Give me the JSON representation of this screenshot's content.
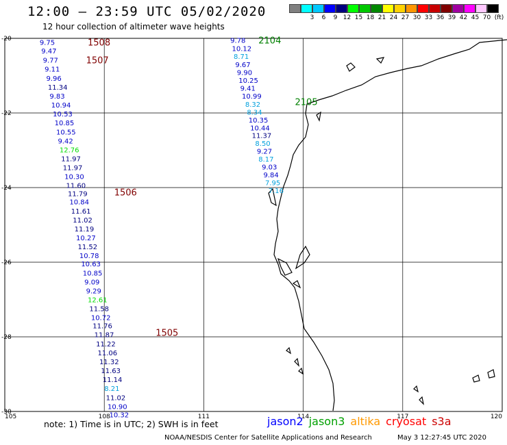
{
  "header": {
    "title": "12:00 — 23:59 UTC 05/02/2020",
    "subtitle": "12 hour collection of altimeter wave heights"
  },
  "legend": {
    "unit": "(ft)",
    "swatches": [
      {
        "label": "",
        "color": "#808080"
      },
      {
        "label": "3",
        "color": "#00ffff"
      },
      {
        "label": "6",
        "color": "#00c8ff"
      },
      {
        "label": "9",
        "color": "#0000ff"
      },
      {
        "label": "12",
        "color": "#00007f"
      },
      {
        "label": "15",
        "color": "#00ff00"
      },
      {
        "label": "18",
        "color": "#00c800"
      },
      {
        "label": "21",
        "color": "#008800"
      },
      {
        "label": "24",
        "color": "#ffff00"
      },
      {
        "label": "27",
        "color": "#ffd200"
      },
      {
        "label": "30",
        "color": "#ff9600"
      },
      {
        "label": "33",
        "color": "#ff0000"
      },
      {
        "label": "36",
        "color": "#c80000"
      },
      {
        "label": "39",
        "color": "#800000"
      },
      {
        "label": "42",
        "color": "#a000a0"
      },
      {
        "label": "45",
        "color": "#ff00ff"
      },
      {
        "label": "70",
        "color": "#ffc8ff"
      },
      {
        "label": "",
        "color": "#000000"
      }
    ]
  },
  "map": {
    "lon_range": [
      105,
      120
    ],
    "lat_range": [
      -30,
      -20
    ],
    "lon_ticks": [
      "105",
      "108",
      "111",
      "114",
      "117",
      "120"
    ],
    "lat_ticks": [
      "-20",
      "-22",
      "-24",
      "-26",
      "-28",
      "-30"
    ],
    "tracks": [
      {
        "time": "1508",
        "color": "#800000",
        "lon": 107.5,
        "lat": -20.1
      },
      {
        "time": "1507",
        "color": "#800000",
        "lon": 107.45,
        "lat": -20.58
      },
      {
        "time": "1506",
        "color": "#800000",
        "lon": 108.3,
        "lat": -24.12
      },
      {
        "time": "1505",
        "color": "#800000",
        "lon": 109.55,
        "lat": -27.88
      },
      {
        "time": "2104",
        "color": "#008000",
        "lon": 112.65,
        "lat": -20.05
      },
      {
        "time": "2105",
        "color": "#008000",
        "lon": 113.75,
        "lat": -21.7
      }
    ],
    "wave_heights": [
      {
        "v": "9.75",
        "lon": 106.05,
        "lat": -20.1,
        "c": "#0000c8"
      },
      {
        "v": "9.47",
        "lon": 106.1,
        "lat": -20.33,
        "c": "#0000c8"
      },
      {
        "v": "9.77",
        "lon": 106.15,
        "lat": -20.58,
        "c": "#0000c8"
      },
      {
        "v": "9.11",
        "lon": 106.2,
        "lat": -20.82,
        "c": "#0000c8"
      },
      {
        "v": "9.96",
        "lon": 106.25,
        "lat": -21.06,
        "c": "#0000c8"
      },
      {
        "v": "11.34",
        "lon": 106.3,
        "lat": -21.3,
        "c": "#000080"
      },
      {
        "v": "9.83",
        "lon": 106.35,
        "lat": -21.54,
        "c": "#0000c8"
      },
      {
        "v": "10.94",
        "lon": 106.4,
        "lat": -21.78,
        "c": "#0000c8"
      },
      {
        "v": "10.53",
        "lon": 106.45,
        "lat": -22.02,
        "c": "#0000c8"
      },
      {
        "v": "10.85",
        "lon": 106.5,
        "lat": -22.26,
        "c": "#0000c8"
      },
      {
        "v": "10.55",
        "lon": 106.55,
        "lat": -22.5,
        "c": "#0000c8"
      },
      {
        "v": "9.42",
        "lon": 106.6,
        "lat": -22.74,
        "c": "#0000c8"
      },
      {
        "v": "12.76",
        "lon": 106.65,
        "lat": -22.98,
        "c": "#00dd00"
      },
      {
        "v": "11.97",
        "lon": 106.7,
        "lat": -23.22,
        "c": "#000080"
      },
      {
        "v": "11.97",
        "lon": 106.75,
        "lat": -23.46,
        "c": "#000080"
      },
      {
        "v": "10.30",
        "lon": 106.8,
        "lat": -23.7,
        "c": "#0000c8"
      },
      {
        "v": "11.60",
        "lon": 106.85,
        "lat": -23.94,
        "c": "#000080"
      },
      {
        "v": "11.79",
        "lon": 106.9,
        "lat": -24.16,
        "c": "#000080"
      },
      {
        "v": "10.84",
        "lon": 106.95,
        "lat": -24.38,
        "c": "#0000c8"
      },
      {
        "v": "11.61",
        "lon": 107.0,
        "lat": -24.62,
        "c": "#000080"
      },
      {
        "v": "11.02",
        "lon": 107.05,
        "lat": -24.86,
        "c": "#000080"
      },
      {
        "v": "11.19",
        "lon": 107.1,
        "lat": -25.1,
        "c": "#000080"
      },
      {
        "v": "10.27",
        "lon": 107.15,
        "lat": -25.34,
        "c": "#0000c8"
      },
      {
        "v": "11.52",
        "lon": 107.2,
        "lat": -25.58,
        "c": "#000080"
      },
      {
        "v": "10.78",
        "lon": 107.25,
        "lat": -25.82,
        "c": "#0000c8"
      },
      {
        "v": "10.63",
        "lon": 107.3,
        "lat": -26.04,
        "c": "#0000c8"
      },
      {
        "v": "10.85",
        "lon": 107.35,
        "lat": -26.28,
        "c": "#0000c8"
      },
      {
        "v": "9.09",
        "lon": 107.4,
        "lat": -26.52,
        "c": "#0000c8"
      },
      {
        "v": "9.29",
        "lon": 107.45,
        "lat": -26.76,
        "c": "#0000c8"
      },
      {
        "v": "12.61",
        "lon": 107.5,
        "lat": -27.0,
        "c": "#00dd00"
      },
      {
        "v": "11.58",
        "lon": 107.55,
        "lat": -27.24,
        "c": "#000080"
      },
      {
        "v": "10.72",
        "lon": 107.6,
        "lat": -27.48,
        "c": "#0000c8"
      },
      {
        "v": "11.76",
        "lon": 107.65,
        "lat": -27.7,
        "c": "#000080"
      },
      {
        "v": "11.87",
        "lon": 107.7,
        "lat": -27.94,
        "c": "#000080"
      },
      {
        "v": "11.22",
        "lon": 107.75,
        "lat": -28.18,
        "c": "#000080"
      },
      {
        "v": "11.06",
        "lon": 107.8,
        "lat": -28.42,
        "c": "#000080"
      },
      {
        "v": "11.32",
        "lon": 107.85,
        "lat": -28.66,
        "c": "#000080"
      },
      {
        "v": "11.63",
        "lon": 107.9,
        "lat": -28.9,
        "c": "#000080"
      },
      {
        "v": "11.14",
        "lon": 107.95,
        "lat": -29.14,
        "c": "#000080"
      },
      {
        "v": "8.21",
        "lon": 108.0,
        "lat": -29.38,
        "c": "#00a0dd"
      },
      {
        "v": "11.02",
        "lon": 108.05,
        "lat": -29.62,
        "c": "#000080"
      },
      {
        "v": "10.90",
        "lon": 108.1,
        "lat": -29.86,
        "c": "#0000c8"
      },
      {
        "v": "10.32",
        "lon": 108.15,
        "lat": -30.08,
        "c": "#0000c8"
      },
      {
        "v": "9.78",
        "lon": 111.8,
        "lat": -20.05,
        "c": "#0000c8"
      },
      {
        "v": "10.12",
        "lon": 111.85,
        "lat": -20.27,
        "c": "#0000c8"
      },
      {
        "v": "8.71",
        "lon": 111.9,
        "lat": -20.48,
        "c": "#00a0dd"
      },
      {
        "v": "9.67",
        "lon": 111.95,
        "lat": -20.7,
        "c": "#0000c8"
      },
      {
        "v": "9.90",
        "lon": 112.0,
        "lat": -20.91,
        "c": "#0000c8"
      },
      {
        "v": "10.25",
        "lon": 112.05,
        "lat": -21.12,
        "c": "#0000c8"
      },
      {
        "v": "9.41",
        "lon": 112.1,
        "lat": -21.33,
        "c": "#0000c8"
      },
      {
        "v": "10.99",
        "lon": 112.15,
        "lat": -21.54,
        "c": "#0000c8"
      },
      {
        "v": "8.32",
        "lon": 112.25,
        "lat": -21.76,
        "c": "#00a0dd"
      },
      {
        "v": "8.34",
        "lon": 112.3,
        "lat": -21.97,
        "c": "#00a0dd"
      },
      {
        "v": "10.35",
        "lon": 112.35,
        "lat": -22.18,
        "c": "#0000c8"
      },
      {
        "v": "10.44",
        "lon": 112.4,
        "lat": -22.39,
        "c": "#0000c8"
      },
      {
        "v": "11.37",
        "lon": 112.45,
        "lat": -22.6,
        "c": "#000080"
      },
      {
        "v": "8.50",
        "lon": 112.55,
        "lat": -22.81,
        "c": "#00a0dd"
      },
      {
        "v": "9.27",
        "lon": 112.6,
        "lat": -23.02,
        "c": "#0000c8"
      },
      {
        "v": "8.17",
        "lon": 112.65,
        "lat": -23.23,
        "c": "#00a0dd"
      },
      {
        "v": "9.03",
        "lon": 112.75,
        "lat": -23.44,
        "c": "#0000c8"
      },
      {
        "v": "9.84",
        "lon": 112.8,
        "lat": -23.65,
        "c": "#0000c8"
      },
      {
        "v": "7.95",
        "lon": 112.85,
        "lat": -23.86,
        "c": "#00a0dd"
      },
      {
        "v": "7.16",
        "lon": 112.95,
        "lat": -24.07,
        "c": "#00a0dd"
      }
    ]
  },
  "footer": {
    "note": "note:  1) Time is in UTC;  2) SWH is in feet",
    "satellites": [
      {
        "name": "jason2",
        "color": "#0000ff"
      },
      {
        "name": "jason3",
        "color": "#00a000"
      },
      {
        "name": "altika",
        "color": "#ff9900"
      },
      {
        "name": "cryosat",
        "color": "#ff0000"
      },
      {
        "name": "s3a",
        "color": "#cc0000"
      }
    ],
    "credit": "NOAA/NESDIS Center for Satellite Applications and Research",
    "timestamp": "May  3 12:27:45 UTC 2020"
  }
}
